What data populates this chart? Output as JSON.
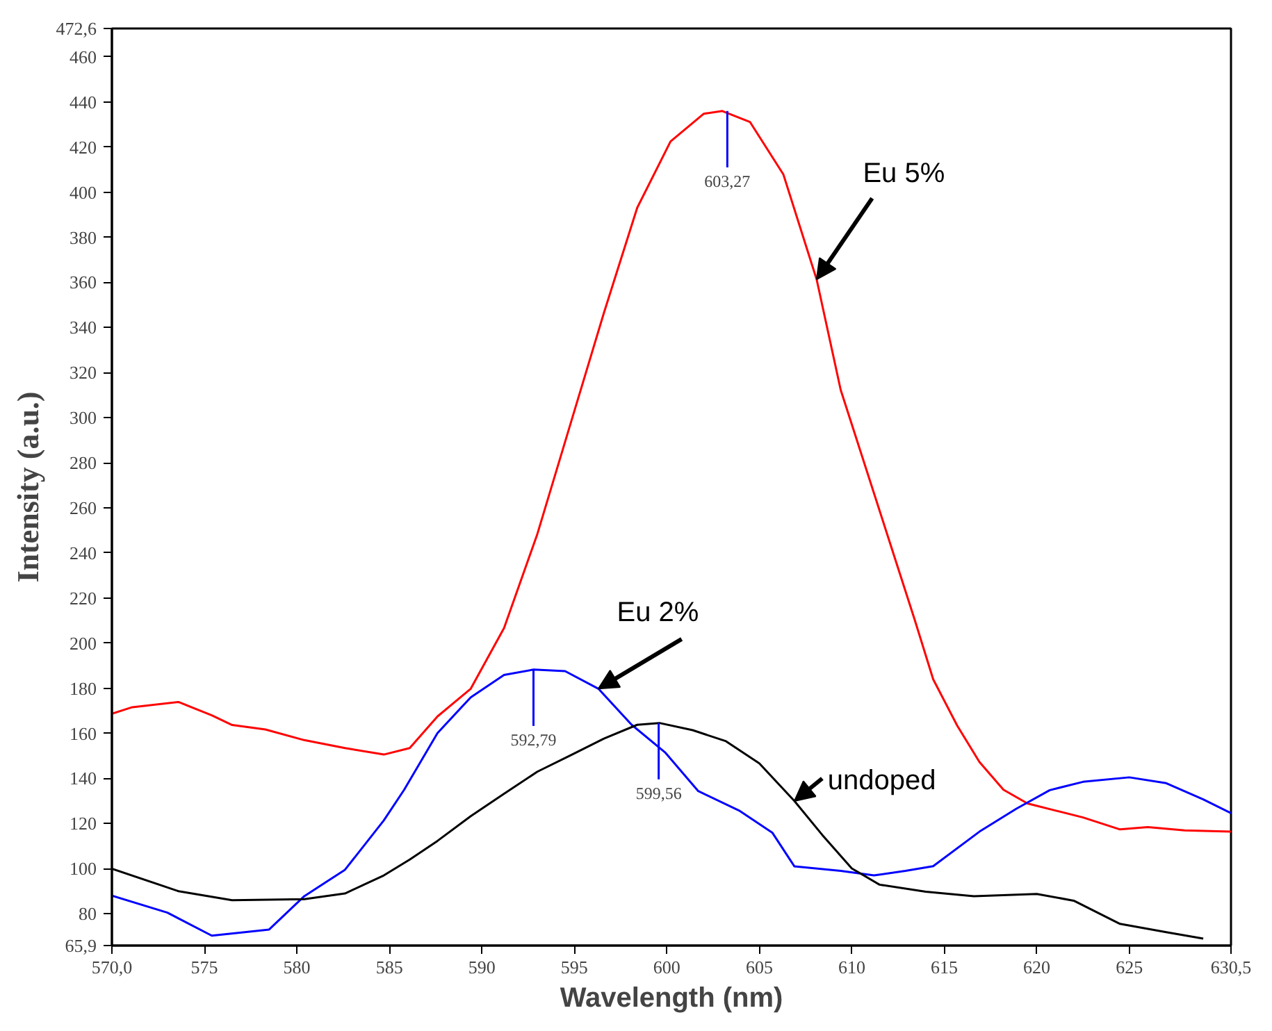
{
  "chart_data": {
    "type": "line",
    "xlabel": "Wavelength (nm)",
    "ylabel": "Intensity (a.u.)",
    "xlim": [
      570.0,
      630.5
    ],
    "ylim": [
      65.9,
      472.6
    ],
    "xticks": [
      {
        "value": 570.0,
        "label": "570,0"
      },
      575,
      580,
      585,
      590,
      595,
      600,
      605,
      610,
      615,
      620,
      625,
      {
        "value": 630.5,
        "label": "630,5"
      }
    ],
    "yticks": [
      {
        "value": 65.9,
        "label": "65,9"
      },
      80,
      100,
      120,
      140,
      160,
      180,
      200,
      220,
      240,
      260,
      280,
      300,
      320,
      340,
      360,
      380,
      400,
      420,
      440,
      460,
      {
        "value": 472.6,
        "label": "472,6"
      }
    ],
    "grid": false,
    "marker": "none",
    "line_style": "solid",
    "series": [
      {
        "name": "Eu 5%",
        "color": "#ff0000",
        "x": [
          570.0,
          571.1,
          573.6,
          575.4,
          576.5,
          578.3,
          580.4,
          582.6,
          584.7,
          586.1,
          587.6,
          589.4,
          591.2,
          593.0,
          594.8,
          596.6,
          598.4,
          600.2,
          602.0,
          603.0,
          604.5,
          606.3,
          608.1,
          609.4,
          612.2,
          613.4,
          614.4,
          615.7,
          616.9,
          618.2,
          619.5,
          621.0,
          622.5,
          624.5,
          626.0,
          628.0,
          630.5
        ],
        "values": [
          168.7,
          171.6,
          173.9,
          168,
          163.7,
          161.7,
          157,
          153.5,
          150.6,
          153.5,
          167.5,
          179.8,
          206.7,
          248.4,
          297.5,
          346.5,
          393.1,
          422.5,
          434.8,
          436,
          431.1,
          407.9,
          361.3,
          312.3,
          241,
          210.4,
          184,
          163.4,
          147.3,
          135,
          128.9,
          125.8,
          122.7,
          117.4,
          118.4,
          117,
          116.4
        ]
      },
      {
        "name": "Eu 2%",
        "color": "#0000ff",
        "x": [
          570.0,
          573.0,
          575.4,
          577.0,
          578.5,
          580.4,
          582.6,
          584.7,
          585.8,
          587.6,
          589.4,
          591.2,
          592.8,
          594.5,
          596.3,
          598.1,
          599.9,
          601.7,
          603.9,
          605.7,
          606.9,
          609.4,
          611.2,
          612.9,
          614.4,
          616.9,
          618.9,
          620.7,
          622.5,
          625.0,
          627.0,
          629.0,
          630.5
        ],
        "values": [
          88,
          80.5,
          70.3,
          71.7,
          73,
          87.8,
          99.5,
          121.4,
          135,
          160.1,
          176,
          185.9,
          188.3,
          187.6,
          179.8,
          163.8,
          151.6,
          134.4,
          125.8,
          116,
          101,
          99,
          97,
          99,
          101.1,
          116.4,
          126.6,
          134.8,
          138.5,
          140.5,
          137.9,
          130.7,
          124.6
        ]
      },
      {
        "name": "undoped",
        "color": "#000000",
        "x": [
          570.0,
          573.6,
          576.5,
          580.4,
          582.6,
          584.7,
          586.1,
          587.6,
          589.4,
          591.2,
          593.0,
          594.8,
          596.6,
          598.4,
          599.6,
          601.4,
          603.2,
          605.0,
          606.9,
          608.4,
          610.0,
          611.5,
          614.0,
          616.6,
          620.0,
          622.0,
          624.5,
          627.0,
          629.0
        ],
        "values": [
          100,
          90,
          86,
          86.5,
          89,
          97,
          104,
          112.3,
          123.3,
          133.2,
          143,
          150.3,
          157.7,
          163.8,
          164.6,
          161.4,
          156.5,
          146.7,
          130,
          115,
          100.1,
          92.9,
          89.8,
          87.8,
          88.8,
          85.8,
          75.5,
          71.8,
          69
        ]
      }
    ],
    "annotations": [
      {
        "text": "603,27",
        "x": 603.27,
        "y": 436
      },
      {
        "text": "592,79",
        "x": 592.79,
        "y": 188.3
      },
      {
        "text": "599,56",
        "x": 599.56,
        "y": 164.6
      }
    ]
  }
}
